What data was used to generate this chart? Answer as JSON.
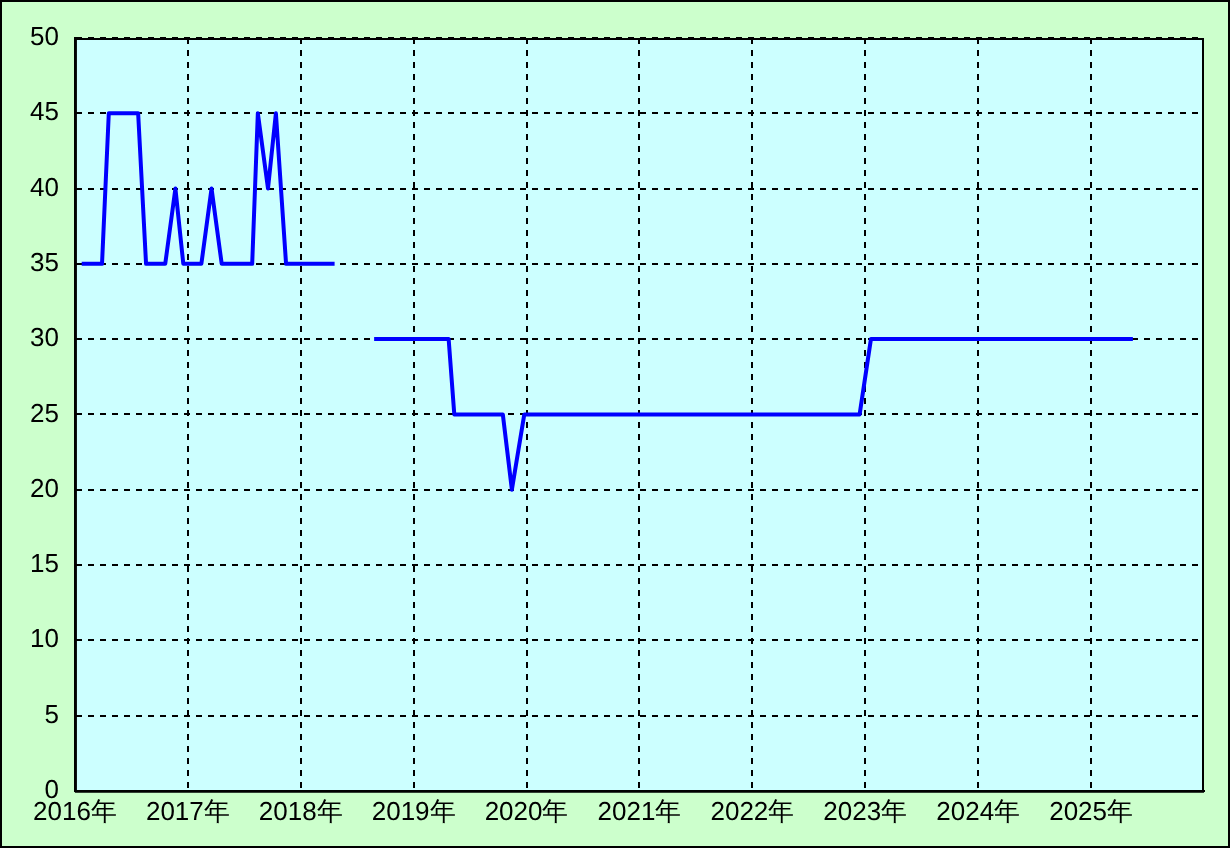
{
  "chart_data": {
    "type": "line",
    "x": [
      2016.06,
      2016.24,
      2016.3,
      2016.56,
      2016.63,
      2016.8,
      2016.89,
      2016.96,
      2017.12,
      2017.21,
      2017.3,
      2017.57,
      2017.62,
      2017.71,
      2017.78,
      2017.87,
      2018.3,
      2018.48,
      2018.65,
      2019.31,
      2019.36,
      2019.79,
      2019.87,
      2019.98,
      2022.95,
      2023.05,
      2025.37
    ],
    "series": [
      {
        "color": "#0000ff",
        "values": [
          35,
          35,
          45,
          45,
          35,
          35,
          40,
          35,
          35,
          40,
          35,
          35,
          45,
          40,
          45,
          35,
          35,
          null,
          30,
          30,
          25,
          25,
          20,
          25,
          25,
          30,
          30
        ]
      }
    ],
    "xlim": [
      2016,
      2026
    ],
    "xticks": [
      {
        "value": 2016,
        "label": "2016年"
      },
      {
        "value": 2017,
        "label": "2017年"
      },
      {
        "value": 2018,
        "label": "2018年"
      },
      {
        "value": 2019,
        "label": "2019年"
      },
      {
        "value": 2020,
        "label": "2020年"
      },
      {
        "value": 2021,
        "label": "2021年"
      },
      {
        "value": 2022,
        "label": "2022年"
      },
      {
        "value": 2023,
        "label": "2023年"
      },
      {
        "value": 2024,
        "label": "2024年"
      },
      {
        "value": 2025,
        "label": "2025年"
      }
    ],
    "ylim": [
      0,
      50
    ],
    "yticks": [
      0,
      5,
      10,
      15,
      20,
      25,
      30,
      35,
      40,
      45,
      50
    ],
    "grid": true,
    "legend": false,
    "marker": "none",
    "line_style": "solid"
  }
}
